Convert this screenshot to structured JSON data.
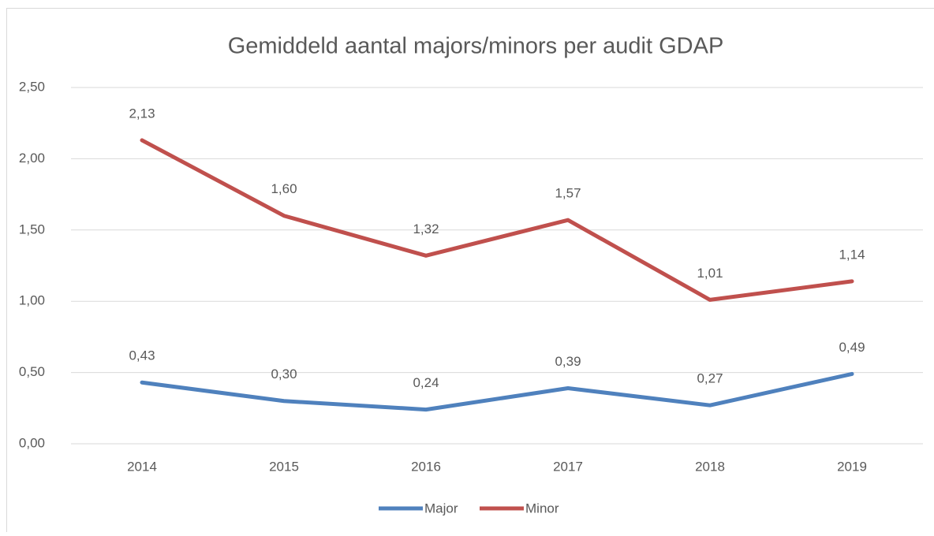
{
  "chart_data": {
    "type": "line",
    "title": "Gemiddeld aantal majors/minors per audit GDAP",
    "categories": [
      "2014",
      "2015",
      "2016",
      "2017",
      "2018",
      "2019"
    ],
    "series": [
      {
        "name": "Major",
        "color": "#4f81bd",
        "values": [
          0.43,
          0.3,
          0.24,
          0.39,
          0.27,
          0.49
        ],
        "value_labels": [
          "0,43",
          "0,30",
          "0,24",
          "0,39",
          "0,27",
          "0,49"
        ]
      },
      {
        "name": "Minor",
        "color": "#c0504d",
        "values": [
          2.13,
          1.6,
          1.32,
          1.57,
          1.01,
          1.14
        ],
        "value_labels": [
          "2,13",
          "1,60",
          "1,32",
          "1,57",
          "1,01",
          "1,14"
        ]
      }
    ],
    "ylim": [
      0,
      2.5
    ],
    "yticks": [
      {
        "value": 0,
        "label": "0,00"
      },
      {
        "value": 0.5,
        "label": "0,50"
      },
      {
        "value": 1,
        "label": "1,00"
      },
      {
        "value": 1.5,
        "label": "1,50"
      },
      {
        "value": 2,
        "label": "2,00"
      },
      {
        "value": 2.5,
        "label": "2,50"
      }
    ],
    "grid": true,
    "legend": "bottom"
  }
}
